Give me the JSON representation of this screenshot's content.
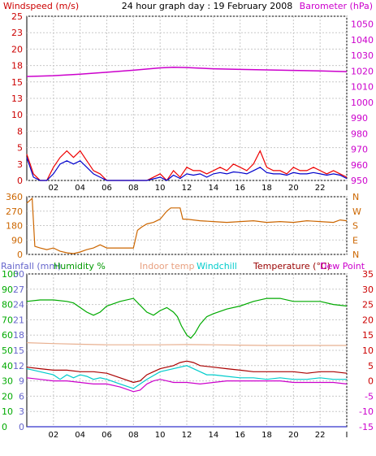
{
  "chart_data": [
    {
      "type": "line",
      "title": "24 hour graph day : 19 February 2008",
      "left_axis_label": "Windspeed (m/s)",
      "right_axis_label": "Barometer (hPa)",
      "x_ticks": [
        "02",
        "04",
        "06",
        "08",
        "10",
        "12",
        "14",
        "16",
        "18",
        "20",
        "22",
        "I"
      ],
      "x_range_hours": [
        0,
        24
      ],
      "left_ylim": [
        0,
        25
      ],
      "left_yticks": [
        "25",
        "23",
        "20",
        "18",
        "15",
        "13",
        "10",
        "8",
        "5",
        "3",
        "0"
      ],
      "left_ytick_values": [
        25,
        22.5,
        20,
        17.5,
        15,
        12.5,
        10,
        7.5,
        5,
        2.5,
        0
      ],
      "right_ylim": [
        950,
        1055
      ],
      "right_yticks": [
        "1050",
        "1040",
        "1030",
        "1020",
        "1010",
        "1000",
        "990",
        "980",
        "970",
        "960",
        "950"
      ],
      "right_ytick_values": [
        1050,
        1040,
        1030,
        1020,
        1010,
        1000,
        990,
        980,
        970,
        960,
        950
      ],
      "grid": true,
      "series": [
        {
          "name": "Barometer (hPa)",
          "axis": "right",
          "color": "#cc00cc",
          "x": [
            0,
            2,
            4,
            6,
            8,
            10,
            11,
            12,
            13,
            14,
            16,
            18,
            20,
            22,
            24
          ],
          "y": [
            1016.5,
            1017,
            1018,
            1019.2,
            1020.5,
            1022,
            1022.4,
            1022.2,
            1021.8,
            1021.4,
            1021.0,
            1020.7,
            1020.4,
            1020.0,
            1019.6
          ]
        },
        {
          "name": "Windspeed gust",
          "axis": "left",
          "color": "#ee0000",
          "x": [
            0,
            0.5,
            1,
            1.5,
            2,
            2.5,
            3,
            3.5,
            4,
            4.5,
            5,
            5.5,
            6,
            7,
            8,
            9,
            10,
            10.5,
            11,
            11.5,
            12,
            12.5,
            13,
            13.5,
            14,
            14.5,
            15,
            15.5,
            16,
            16.5,
            17,
            17.5,
            18,
            18.5,
            19,
            19.5,
            20,
            20.5,
            21,
            21.5,
            22,
            22.5,
            23,
            23.5,
            24
          ],
          "y": [
            4,
            1,
            0,
            0,
            2,
            3.5,
            4.5,
            3.5,
            4.5,
            3,
            1.5,
            1,
            0,
            0,
            0,
            0,
            1,
            0,
            1.5,
            0.5,
            2,
            1.5,
            1.5,
            1,
            1.5,
            2,
            1.5,
            2.5,
            2,
            1.5,
            2.5,
            4.5,
            2,
            1.5,
            1.5,
            1,
            2,
            1.5,
            1.5,
            2,
            1.5,
            1,
            1.5,
            1,
            0.5
          ]
        },
        {
          "name": "Windspeed average",
          "axis": "left",
          "color": "#0000cc",
          "x": [
            0,
            0.5,
            1,
            1.5,
            2,
            2.5,
            3,
            3.5,
            4,
            4.5,
            5,
            5.5,
            6,
            7,
            8,
            9,
            10,
            10.5,
            11,
            11.5,
            12,
            12.5,
            13,
            13.5,
            14,
            14.5,
            15,
            15.5,
            16,
            16.5,
            17,
            17.5,
            18,
            18.5,
            19,
            19.5,
            20,
            20.5,
            21,
            21.5,
            22,
            22.5,
            23,
            23.5,
            24
          ],
          "y": [
            3.5,
            0.5,
            0,
            0,
            1,
            2.5,
            3,
            2.5,
            3,
            2,
            1,
            0.5,
            0,
            0,
            0,
            0,
            0.5,
            0,
            0.8,
            0.3,
            1,
            0.8,
            1,
            0.5,
            1,
            1.2,
            1,
            1.3,
            1.2,
            1,
            1.5,
            2,
            1.2,
            1,
            1,
            0.8,
            1.2,
            1,
            1,
            1.2,
            1,
            0.8,
            1,
            0.8,
            0.3
          ]
        }
      ]
    },
    {
      "type": "line",
      "left_yticks": [
        "360",
        "270",
        "180",
        "90",
        "0"
      ],
      "left_ytick_values": [
        360,
        270,
        180,
        90,
        0
      ],
      "right_labels": [
        "N",
        "W",
        "S",
        "E",
        "N"
      ],
      "ylim": [
        0,
        360
      ],
      "grid": true,
      "series": [
        {
          "name": "Wind direction",
          "color": "#cc6600",
          "x": [
            0,
            0.4,
            0.6,
            1,
            1.5,
            2,
            2.5,
            3,
            3.5,
            4,
            4.5,
            5,
            5.5,
            6,
            6.5,
            7,
            7.5,
            8,
            8.3,
            8.6,
            9,
            9.5,
            10,
            10.5,
            10.8,
            11.2,
            11.5,
            11.7,
            12,
            13,
            14,
            15,
            16,
            17,
            18,
            19,
            20,
            21,
            22,
            23,
            23.5,
            24
          ],
          "y": [
            320,
            350,
            50,
            40,
            30,
            40,
            20,
            10,
            5,
            15,
            30,
            40,
            60,
            40,
            40,
            40,
            40,
            40,
            150,
            170,
            190,
            200,
            220,
            270,
            290,
            290,
            290,
            220,
            220,
            210,
            205,
            200,
            205,
            210,
            200,
            205,
            200,
            210,
            205,
            200,
            215,
            210
          ]
        }
      ]
    },
    {
      "type": "line",
      "header_labels": {
        "rainfall": "Rainfall (mm)",
        "humidity": "Humidity %",
        "indoor": "Indoor temp",
        "windchill": "Windchill",
        "temperature": "Temperature (°C)",
        "dewpoint": "Dew Point"
      },
      "rain_yticks": [
        "30",
        "27",
        "24",
        "21",
        "18",
        "15",
        "12",
        "9",
        "6",
        "3",
        "0"
      ],
      "rain_ylim": [
        0,
        30
      ],
      "humidity_yticks": [
        "100",
        "90",
        "80",
        "70",
        "60",
        "50",
        "40",
        "30",
        "20",
        "10",
        "0"
      ],
      "humidity_ylim": [
        0,
        100
      ],
      "temp_yticks": [
        "35",
        "30",
        "25",
        "20",
        "15",
        "10",
        "5",
        "0",
        "-5",
        "-10",
        "-15"
      ],
      "temp_ylim": [
        -15,
        35
      ],
      "grid": true,
      "series": [
        {
          "name": "Humidity %",
          "axis": "humidity",
          "color": "#00aa00",
          "x": [
            0,
            1,
            2,
            3,
            3.5,
            4,
            4.5,
            5,
            5.5,
            6,
            7,
            8,
            9,
            9.5,
            10,
            10.5,
            11,
            11.3,
            11.6,
            12,
            12.3,
            12.6,
            13,
            13.5,
            14,
            15,
            16,
            17,
            18,
            19,
            20,
            21,
            22,
            23,
            24
          ],
          "y": [
            82,
            83,
            83,
            82,
            81,
            78,
            75,
            73,
            75,
            79,
            82,
            84,
            75,
            73,
            76,
            78,
            75,
            72,
            66,
            60,
            58,
            61,
            67,
            72,
            74,
            77,
            79,
            82,
            84,
            84,
            82,
            82,
            82,
            80,
            79
          ]
        },
        {
          "name": "Indoor temp",
          "axis": "temp",
          "color": "#e8b090",
          "x": [
            0,
            2,
            4,
            6,
            8,
            10,
            12,
            14,
            16,
            18,
            20,
            22,
            24
          ],
          "y": [
            12.5,
            12.2,
            12,
            11.8,
            11.8,
            11.8,
            11.9,
            11.8,
            11.7,
            11.6,
            11.6,
            11.6,
            11.6
          ]
        },
        {
          "name": "Windchill",
          "axis": "temp",
          "color": "#00cccc",
          "x": [
            0,
            1,
            2,
            2.5,
            3,
            3.5,
            4,
            4.5,
            5,
            5.5,
            6,
            7,
            8,
            9,
            10,
            11,
            12,
            12.5,
            13,
            13.5,
            14,
            15,
            16,
            17,
            18,
            19,
            20,
            21,
            22,
            23,
            24
          ],
          "y": [
            4,
            3,
            2,
            0.5,
            2,
            1,
            2,
            1.5,
            0.5,
            1,
            0.5,
            -1,
            -2.5,
            0.5,
            3,
            4,
            5,
            4,
            3,
            2,
            2,
            1.5,
            1,
            1,
            0.5,
            1,
            0.5,
            0.5,
            1,
            0.5,
            0.5
          ]
        },
        {
          "name": "Temperature (°C)",
          "axis": "temp",
          "color": "#aa0000",
          "x": [
            0,
            1,
            2,
            3,
            4,
            5,
            6,
            7,
            8,
            8.5,
            9,
            9.5,
            10,
            10.5,
            11,
            11.5,
            12,
            12.5,
            13,
            14,
            15,
            16,
            17,
            18,
            19,
            20,
            21,
            22,
            23,
            24
          ],
          "y": [
            4.5,
            4,
            3.5,
            3.5,
            3,
            3,
            2.5,
            1,
            -0.5,
            0,
            2,
            3,
            4,
            4.5,
            5,
            6,
            6.5,
            6,
            5,
            4.5,
            4,
            3.5,
            3,
            3,
            3,
            3,
            2.5,
            3,
            3,
            2.5
          ]
        },
        {
          "name": "Dew Point",
          "axis": "temp",
          "color": "#cc00cc",
          "x": [
            0,
            1,
            2,
            3,
            4,
            5,
            6,
            7,
            8,
            8.5,
            9,
            9.5,
            10,
            10.5,
            11,
            12,
            13,
            14,
            15,
            16,
            17,
            18,
            19,
            20,
            21,
            22,
            23,
            24
          ],
          "y": [
            1,
            0.5,
            0,
            0,
            -0.5,
            -1,
            -1,
            -2,
            -3.5,
            -3,
            -1,
            0,
            0.5,
            0,
            -0.5,
            -0.5,
            -1,
            -0.5,
            0,
            0,
            0,
            0,
            0,
            -0.5,
            -0.5,
            -0.5,
            -0.5,
            -1
          ]
        },
        {
          "name": "Rainfall (mm)",
          "axis": "rain",
          "color": "#3333cc",
          "x": [
            0,
            24
          ],
          "y": [
            0,
            0
          ]
        }
      ]
    }
  ]
}
